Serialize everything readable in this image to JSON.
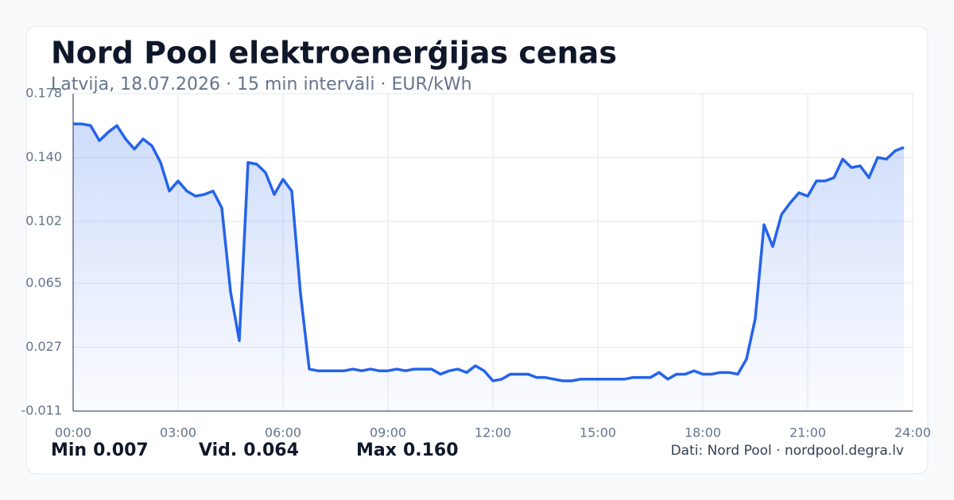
{
  "chart_data": {
    "type": "line",
    "title": "Nord Pool elektroenerģijas cenas",
    "subtitle": "Latvija, 18.07.2026 · 15 min intervāli · EUR/kWh",
    "x": [
      0,
      0.25,
      0.5,
      0.75,
      1,
      1.25,
      1.5,
      1.75,
      2,
      2.25,
      2.5,
      2.75,
      3,
      3.25,
      3.5,
      3.75,
      4,
      4.25,
      4.5,
      4.75,
      5,
      5.25,
      5.5,
      5.75,
      6,
      6.25,
      6.5,
      6.75,
      7,
      7.25,
      7.5,
      7.75,
      8,
      8.25,
      8.5,
      8.75,
      9,
      9.25,
      9.5,
      9.75,
      10,
      10.25,
      10.5,
      10.75,
      11,
      11.25,
      11.5,
      11.75,
      12,
      12.25,
      12.5,
      12.75,
      13,
      13.25,
      13.5,
      13.75,
      14,
      14.25,
      14.5,
      14.75,
      15,
      15.25,
      15.5,
      15.75,
      16,
      16.25,
      16.5,
      16.75,
      17,
      17.25,
      17.5,
      17.75,
      18,
      18.25,
      18.5,
      18.75,
      19,
      19.25,
      19.5,
      19.75,
      20,
      20.25,
      20.5,
      20.75,
      21,
      21.25,
      21.5,
      21.75,
      22,
      22.25,
      22.5,
      22.75,
      23,
      23.25,
      23.5,
      23.75
    ],
    "series": [
      {
        "name": "EUR/kWh",
        "color": "#2563eb",
        "values": [
          0.16,
          0.16,
          0.159,
          0.15,
          0.155,
          0.159,
          0.151,
          0.145,
          0.151,
          0.147,
          0.137,
          0.12,
          0.126,
          0.12,
          0.117,
          0.118,
          0.12,
          0.11,
          0.06,
          0.031,
          0.137,
          0.136,
          0.131,
          0.118,
          0.127,
          0.12,
          0.059,
          0.014,
          0.013,
          0.013,
          0.013,
          0.013,
          0.014,
          0.013,
          0.014,
          0.013,
          0.013,
          0.014,
          0.013,
          0.014,
          0.014,
          0.014,
          0.011,
          0.013,
          0.014,
          0.012,
          0.016,
          0.013,
          0.007,
          0.008,
          0.011,
          0.011,
          0.011,
          0.009,
          0.009,
          0.008,
          0.007,
          0.007,
          0.008,
          0.008,
          0.008,
          0.008,
          0.008,
          0.008,
          0.009,
          0.009,
          0.009,
          0.012,
          0.008,
          0.011,
          0.011,
          0.013,
          0.011,
          0.011,
          0.012,
          0.012,
          0.011,
          0.02,
          0.044,
          0.1,
          0.087,
          0.106,
          0.113,
          0.119,
          0.117,
          0.126,
          0.126,
          0.128,
          0.139,
          0.134,
          0.135,
          0.128,
          0.14,
          0.139,
          0.144,
          0.146
        ]
      }
    ],
    "xlim": [
      0,
      24
    ],
    "xticks": [
      {
        "value": 0,
        "label": "00:00"
      },
      {
        "value": 3,
        "label": "03:00"
      },
      {
        "value": 6,
        "label": "06:00"
      },
      {
        "value": 9,
        "label": "09:00"
      },
      {
        "value": 12,
        "label": "12:00"
      },
      {
        "value": 15,
        "label": "15:00"
      },
      {
        "value": 18,
        "label": "18:00"
      },
      {
        "value": 21,
        "label": "21:00"
      },
      {
        "value": 24,
        "label": "24:00"
      }
    ],
    "ylim": [
      -0.011,
      0.178
    ],
    "yticks": [
      -0.011,
      0.027,
      0.065,
      0.102,
      {
        "value": 0.14,
        "label": "0.140"
      },
      0.178
    ],
    "grid": true,
    "stats": [
      {
        "label": "Min",
        "value": "0.007"
      },
      {
        "label": "Vid.",
        "value": "0.064"
      },
      {
        "label": "Max",
        "value": "0.160"
      }
    ],
    "source": "Dati: Nord Pool · nordpool.degra.lv"
  }
}
